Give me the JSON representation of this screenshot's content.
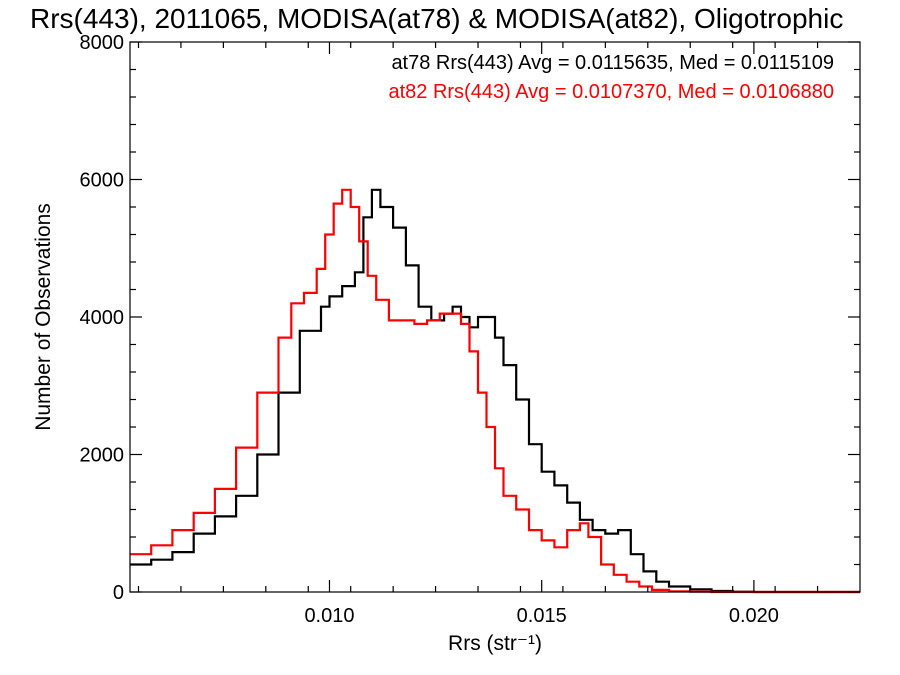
{
  "chart_data": {
    "type": "line",
    "title": "Rrs(443), 2011065, MODISA(at78) & MODISA(at82), Oligotrophic",
    "xlabel": "Rrs (str⁻¹)",
    "ylabel": "Number of Observations",
    "xlim": [
      0.0053,
      0.0225
    ],
    "ylim": [
      0,
      8000
    ],
    "x_ticks": [
      0.01,
      0.015,
      0.02
    ],
    "x_tick_labels": [
      "0.010",
      "0.015",
      "0.020"
    ],
    "y_ticks": [
      0,
      2000,
      4000,
      6000,
      8000
    ],
    "y_tick_labels": [
      "0",
      "2000",
      "4000",
      "6000",
      "8000"
    ],
    "grid": false,
    "line_style": "step",
    "annotations": [
      {
        "text": "at78 Rrs(443) Avg = 0.0115635, Med = 0.0115109",
        "color": "#000000"
      },
      {
        "text": "at82 Rrs(443) Avg = 0.0107370, Med = 0.0106880",
        "color": "#ff0000"
      }
    ],
    "series": [
      {
        "color": "#000000",
        "x": [
          0.0053,
          0.0058,
          0.0063,
          0.0068,
          0.0073,
          0.0078,
          0.0083,
          0.0088,
          0.0093,
          0.0098,
          0.01,
          0.0103,
          0.0106,
          0.0108,
          0.011,
          0.0112,
          0.0115,
          0.0118,
          0.0121,
          0.0124,
          0.0127,
          0.0129,
          0.0131,
          0.0133,
          0.0135,
          0.0137,
          0.0139,
          0.0141,
          0.0144,
          0.0147,
          0.015,
          0.0153,
          0.0156,
          0.0159,
          0.0162,
          0.0165,
          0.0168,
          0.0171,
          0.0174,
          0.0177,
          0.018,
          0.0185,
          0.019,
          0.0195,
          0.02,
          0.021,
          0.0225
        ],
        "y": [
          400,
          470,
          580,
          850,
          1100,
          1400,
          2000,
          2900,
          3800,
          4150,
          4300,
          4450,
          4650,
          5450,
          5850,
          5600,
          5300,
          4750,
          4150,
          3950,
          4050,
          4150,
          4000,
          3850,
          4000,
          4000,
          3700,
          3300,
          2800,
          2150,
          1750,
          1550,
          1300,
          1050,
          900,
          850,
          900,
          550,
          300,
          150,
          80,
          40,
          15,
          5,
          0,
          0,
          0
        ]
      },
      {
        "color": "#ff0000",
        "x": [
          0.0053,
          0.0058,
          0.0063,
          0.0068,
          0.0073,
          0.0078,
          0.0083,
          0.0088,
          0.0091,
          0.0094,
          0.0097,
          0.0099,
          0.0101,
          0.0103,
          0.0105,
          0.0107,
          0.0109,
          0.0111,
          0.0114,
          0.0117,
          0.012,
          0.0123,
          0.0126,
          0.0129,
          0.0131,
          0.0133,
          0.0135,
          0.0137,
          0.0139,
          0.0141,
          0.0144,
          0.0147,
          0.015,
          0.0153,
          0.0156,
          0.0159,
          0.0161,
          0.0164,
          0.0167,
          0.017,
          0.0173,
          0.0176,
          0.018,
          0.0185,
          0.019,
          0.02,
          0.0225
        ],
        "y": [
          550,
          680,
          900,
          1150,
          1500,
          2100,
          2900,
          3700,
          4200,
          4350,
          4700,
          5200,
          5650,
          5850,
          5600,
          5100,
          4600,
          4250,
          3950,
          3950,
          3900,
          3950,
          4050,
          4050,
          3900,
          3500,
          2900,
          2400,
          1800,
          1400,
          1200,
          900,
          750,
          650,
          900,
          1000,
          800,
          400,
          250,
          150,
          80,
          30,
          10,
          5,
          0,
          0,
          0
        ]
      }
    ]
  }
}
